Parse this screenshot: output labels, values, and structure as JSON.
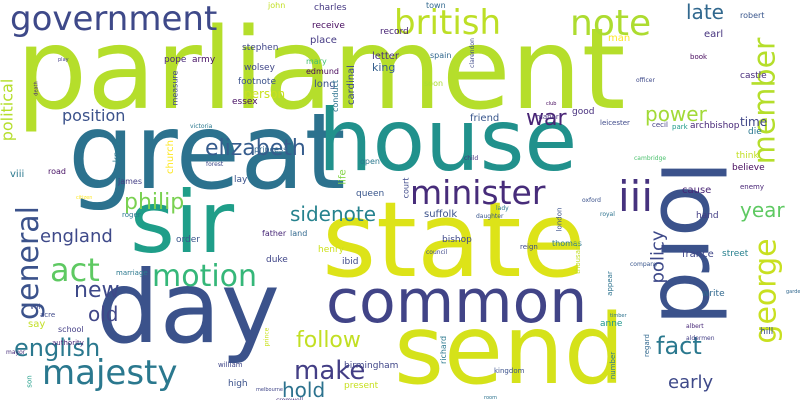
{
  "words": [
    {
      "text": "parliament",
      "color": "#b5de2b"
    },
    {
      "text": "great",
      "color": "#2c728e"
    },
    {
      "text": "house",
      "color": "#21918c"
    },
    {
      "text": "state",
      "color": "#dde318"
    },
    {
      "text": "sir",
      "color": "#1f9e89"
    },
    {
      "text": "day",
      "color": "#3b528b"
    },
    {
      "text": "common",
      "color": "#414487"
    },
    {
      "text": "send",
      "color": "#d5e21a"
    },
    {
      "text": "lord",
      "color": "#3b528b"
    },
    {
      "text": "minister",
      "color": "#472c7a"
    },
    {
      "text": "government",
      "color": "#3e4989"
    },
    {
      "text": "british",
      "color": "#bddf26"
    },
    {
      "text": "note",
      "color": "#addc30"
    },
    {
      "text": "iii",
      "color": "#46327e"
    },
    {
      "text": "member",
      "color": "#b5de2b"
    },
    {
      "text": "george",
      "color": "#c8e020"
    },
    {
      "text": "majesty",
      "color": "#2a788e"
    },
    {
      "text": "motion",
      "color": "#35b779"
    },
    {
      "text": "act",
      "color": "#5ec962"
    },
    {
      "text": "elizabeth",
      "color": "#365c8d"
    },
    {
      "text": "philip",
      "color": "#7ad151"
    },
    {
      "text": "general",
      "color": "#3b528b"
    },
    {
      "text": "sidenote",
      "color": "#26828e"
    },
    {
      "text": "power",
      "color": "#a2da37"
    },
    {
      "text": "war",
      "color": "#482475"
    },
    {
      "text": "late",
      "color": "#31688e"
    },
    {
      "text": "position",
      "color": "#3b528b"
    },
    {
      "text": "england",
      "color": "#3e4989"
    },
    {
      "text": "new",
      "color": "#3e4989"
    },
    {
      "text": "old",
      "color": "#404688"
    },
    {
      "text": "english",
      "color": "#2a788e"
    },
    {
      "text": "fact",
      "color": "#2a788e"
    },
    {
      "text": "make",
      "color": "#433e85"
    },
    {
      "text": "follow",
      "color": "#c2df23"
    },
    {
      "text": "hold",
      "color": "#2c728e"
    },
    {
      "text": "early",
      "color": "#3e4989"
    },
    {
      "text": "year",
      "color": "#5ec962"
    },
    {
      "text": "policy",
      "color": "#3e4989"
    },
    {
      "text": "political",
      "color": "#b5de2b"
    },
    {
      "text": "time",
      "color": "#404688"
    },
    {
      "text": "place",
      "color": "#443983"
    },
    {
      "text": "king",
      "color": "#355f8d"
    },
    {
      "text": "person",
      "color": "#cae11f"
    },
    {
      "text": "friend",
      "color": "#39568c"
    },
    {
      "text": "church",
      "color": "#fde725"
    },
    {
      "text": "life",
      "color": "#86d549"
    },
    {
      "text": "cardinal",
      "color": "#3e4a89"
    },
    {
      "text": "long",
      "color": "#3b528b"
    },
    {
      "text": "letter",
      "color": "#472f7d"
    },
    {
      "text": "pope",
      "color": "#482878"
    },
    {
      "text": "army",
      "color": "#471164"
    },
    {
      "text": "john",
      "color": "#c2df23"
    },
    {
      "text": "charles",
      "color": "#453882"
    },
    {
      "text": "stephen",
      "color": "#404688"
    },
    {
      "text": "receive",
      "color": "#460b5e"
    },
    {
      "text": "footnote",
      "color": "#3b528b"
    },
    {
      "text": "wolsey",
      "color": "#404688"
    },
    {
      "text": "essex",
      "color": "#471063"
    },
    {
      "text": "measure",
      "color": "#3e4989"
    },
    {
      "text": "mary",
      "color": "#44bf70"
    },
    {
      "text": "edmund",
      "color": "#450559"
    },
    {
      "text": "conduct",
      "color": "#2c728e"
    },
    {
      "text": "record",
      "color": "#482475"
    },
    {
      "text": "town",
      "color": "#31688e"
    },
    {
      "text": "spain",
      "color": "#31688e"
    },
    {
      "text": "man",
      "color": "#fde725"
    },
    {
      "text": "earl",
      "color": "#46337e"
    },
    {
      "text": "robert",
      "color": "#39568c"
    },
    {
      "text": "castle",
      "color": "#472c7a"
    },
    {
      "text": "book",
      "color": "#46085c"
    },
    {
      "text": "archbishop",
      "color": "#482878"
    },
    {
      "text": "leicester",
      "color": "#3e4989"
    },
    {
      "text": "cecil",
      "color": "#433e85"
    },
    {
      "text": "park",
      "color": "#1f9a8a"
    },
    {
      "text": "manor",
      "color": "#46327e"
    },
    {
      "text": "soon",
      "color": "#aadc32"
    },
    {
      "text": "good",
      "color": "#472f7d"
    },
    {
      "text": "die",
      "color": "#2a788e"
    },
    {
      "text": "think",
      "color": "#c2df23"
    },
    {
      "text": "believe",
      "color": "#460a5d"
    },
    {
      "text": "cause",
      "color": "#482475"
    },
    {
      "text": "enemy",
      "color": "#482576"
    },
    {
      "text": "hand",
      "color": "#433e85"
    },
    {
      "text": "france",
      "color": "#404688"
    },
    {
      "text": "street",
      "color": "#27808e"
    },
    {
      "text": "write",
      "color": "#31688e"
    },
    {
      "text": "hill",
      "color": "#3b528b"
    },
    {
      "text": "viii",
      "color": "#2a788e"
    },
    {
      "text": "know",
      "color": "#2a788e"
    },
    {
      "text": "road",
      "color": "#471164"
    },
    {
      "text": "james",
      "color": "#433e85"
    },
    {
      "text": "roger",
      "color": "#2a788e"
    },
    {
      "text": "order",
      "color": "#39568c"
    },
    {
      "text": "duke",
      "color": "#404688"
    },
    {
      "text": "lay",
      "color": "#3b528b"
    },
    {
      "text": "queen",
      "color": "#39568c"
    },
    {
      "text": "court",
      "color": "#3e4989"
    },
    {
      "text": "suffolk",
      "color": "#3b528b"
    },
    {
      "text": "bishop",
      "color": "#3e4989"
    },
    {
      "text": "thomas",
      "color": "#2a788e"
    },
    {
      "text": "london",
      "color": "#3b528b"
    },
    {
      "text": "reign",
      "color": "#3e4989"
    },
    {
      "text": "anne",
      "color": "#1f968b"
    },
    {
      "text": "henry",
      "color": "#cde11d"
    },
    {
      "text": "ibid",
      "color": "#3e4989"
    },
    {
      "text": "father",
      "color": "#482878"
    },
    {
      "text": "land",
      "color": "#31688e"
    },
    {
      "text": "birmingham",
      "color": "#404688"
    },
    {
      "text": "kingdom",
      "color": "#3b528b"
    },
    {
      "text": "present",
      "color": "#c8e020"
    },
    {
      "text": "appear",
      "color": "#2c728e"
    },
    {
      "text": "thousand",
      "color": "#c2df23"
    },
    {
      "text": "richard",
      "color": "#2a788e"
    },
    {
      "text": "number",
      "color": "#2a788e"
    },
    {
      "text": "regard",
      "color": "#31688e"
    },
    {
      "text": "high",
      "color": "#3b528b"
    },
    {
      "text": "william",
      "color": "#404688"
    },
    {
      "text": "school",
      "color": "#433e85"
    },
    {
      "text": "say",
      "color": "#c2df23"
    },
    {
      "text": "authority",
      "color": "#482878"
    },
    {
      "text": "vol",
      "color": "#3e4989"
    },
    {
      "text": "acre",
      "color": "#3e4989"
    },
    {
      "text": "mayor",
      "color": "#472c7a"
    },
    {
      "text": "son",
      "color": "#1f9e89"
    },
    {
      "text": "marriage",
      "color": "#2a788e"
    },
    {
      "text": "prince",
      "color": "#cae11f"
    },
    {
      "text": "princess",
      "color": "#31688e"
    },
    {
      "text": "forest",
      "color": "#3e4989"
    },
    {
      "text": "victoria",
      "color": "#2a788e"
    },
    {
      "text": "cromwell",
      "color": "#46327e"
    },
    {
      "text": "open",
      "color": "#2a788e"
    },
    {
      "text": "child",
      "color": "#46327e"
    },
    {
      "text": "daughter",
      "color": "#39568c"
    },
    {
      "text": "council",
      "color": "#3e4989"
    },
    {
      "text": "company",
      "color": "#39568c"
    },
    {
      "text": "clarendon",
      "color": "#3e4989"
    },
    {
      "text": "cambridge",
      "color": "#4ac16d"
    },
    {
      "text": "albert",
      "color": "#482878"
    },
    {
      "text": "aldermen",
      "color": "#433e85"
    },
    {
      "text": "officer",
      "color": "#3e4989"
    },
    {
      "text": "timber",
      "color": "#2c728e"
    },
    {
      "text": "oxford",
      "color": "#3b528b"
    },
    {
      "text": "royal",
      "color": "#2c728e"
    },
    {
      "text": "lady",
      "color": "#2a788e"
    },
    {
      "text": "gardens",
      "color": "#31688e"
    },
    {
      "text": "melbourne",
      "color": "#404688"
    },
    {
      "text": "club",
      "color": "#46085c"
    },
    {
      "text": "death",
      "color": "#482878"
    },
    {
      "text": "play",
      "color": "#433e85"
    },
    {
      "text": "citizen",
      "color": "#fde725"
    },
    {
      "text": "room",
      "color": "#2c728e"
    }
  ]
}
